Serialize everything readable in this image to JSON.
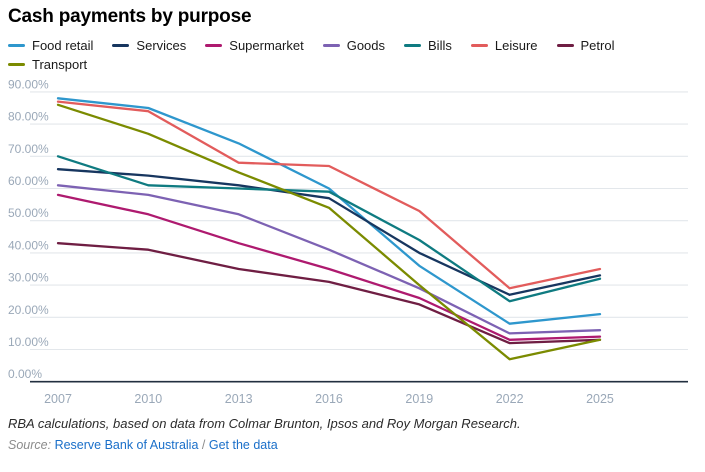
{
  "header": {
    "title": "Cash payments by purpose"
  },
  "chart_data": {
    "type": "line",
    "x": [
      2007,
      2010,
      2013,
      2016,
      2019,
      2022,
      2025
    ],
    "series": [
      {
        "name": "Food retail",
        "color": "#2e97cd",
        "values": [
          88,
          85,
          74,
          60,
          36,
          18,
          21
        ]
      },
      {
        "name": "Services",
        "color": "#17365f",
        "values": [
          66,
          64,
          61,
          57,
          40,
          27,
          33
        ]
      },
      {
        "name": "Supermarket",
        "color": "#ae1a6f",
        "values": [
          58,
          52,
          43,
          35,
          26,
          13,
          14
        ]
      },
      {
        "name": "Goods",
        "color": "#7d62b3",
        "values": [
          61,
          58,
          52,
          41,
          29,
          15,
          16
        ]
      },
      {
        "name": "Bills",
        "color": "#0f7b81",
        "values": [
          70,
          61,
          60,
          59,
          44,
          25,
          32
        ]
      },
      {
        "name": "Leisure",
        "color": "#e25c5c",
        "values": [
          87,
          84,
          68,
          67,
          53,
          29,
          35
        ]
      },
      {
        "name": "Petrol",
        "color": "#6f1e43",
        "values": [
          43,
          41,
          35,
          31,
          24,
          12,
          13
        ]
      },
      {
        "name": "Transport",
        "color": "#7b8b00",
        "values": [
          86,
          77,
          65,
          54,
          30,
          7,
          13
        ]
      }
    ],
    "title": "Cash payments by purpose",
    "xlabel": "",
    "ylabel": "",
    "ylim": [
      0,
      90
    ],
    "ytick_step": 10,
    "ytick_format": "0.00%",
    "grid": true,
    "legend_position": "top"
  },
  "footer": {
    "note": "RBA calculations, based on data from Colmar Brunton, Ipsos and Roy Morgan Research.",
    "source_label": "Source:",
    "source_link": "Reserve Bank of Australia",
    "separator": "/",
    "data_link": "Get the data"
  },
  "colors": {
    "grid": "#e3e7eb",
    "axis": "#222f3f",
    "tick_label": "#9aa8b8",
    "link": "#1a6fc9"
  }
}
